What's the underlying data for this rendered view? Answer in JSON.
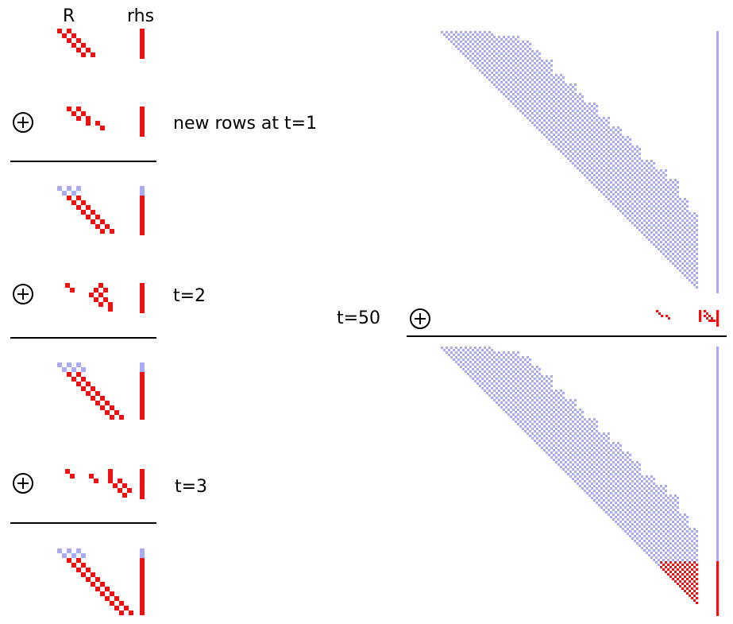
{
  "header": {
    "col_r": "R",
    "col_rhs": "rhs"
  },
  "steps": [
    {
      "label": "new rows at t=1"
    },
    {
      "label": "t=2"
    },
    {
      "label": "t=3"
    }
  ],
  "big": {
    "label": "t=50"
  },
  "colors": {
    "old": "#aaaaf0",
    "new": "#ee1111",
    "line": "#000000"
  },
  "icons": {
    "plus": "circle-plus-icon"
  }
}
